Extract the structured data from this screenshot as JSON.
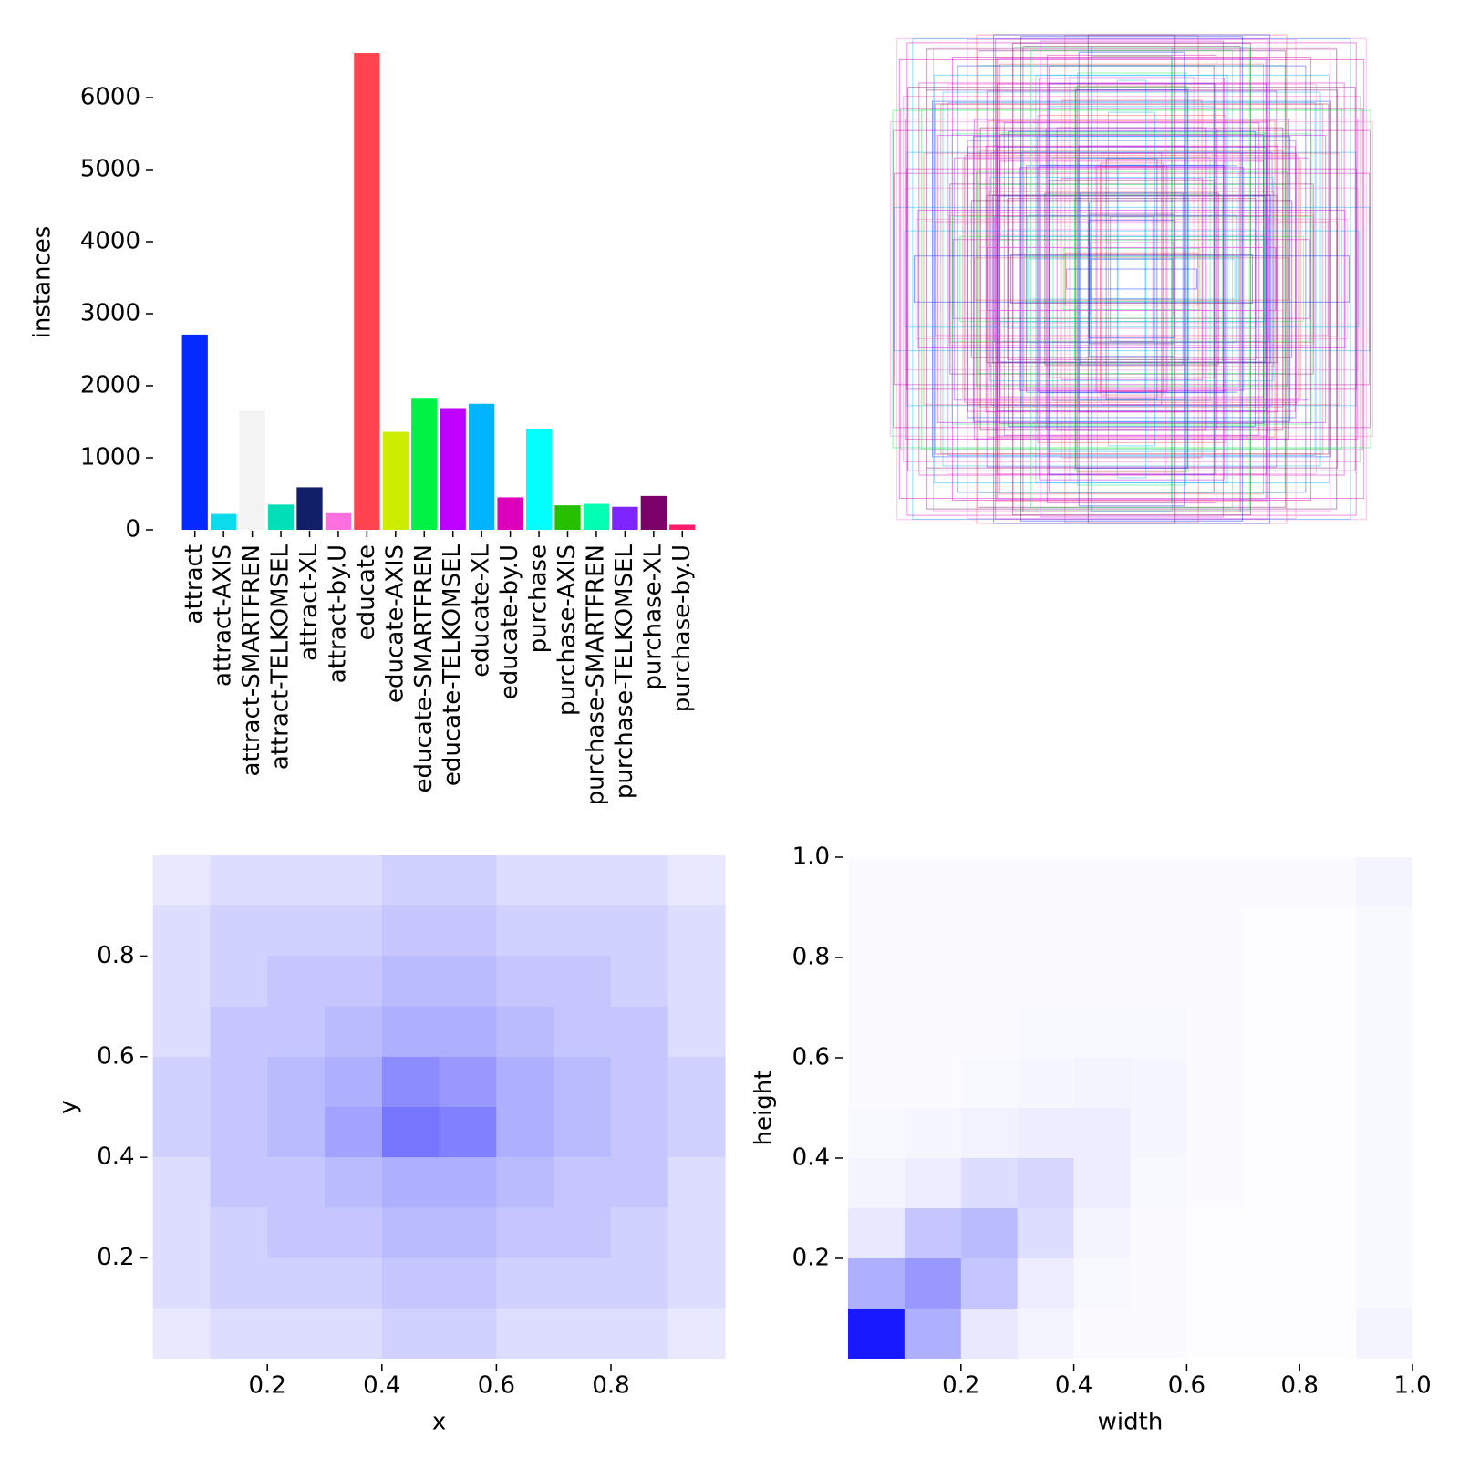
{
  "chart_data": [
    {
      "type": "bar",
      "ylabel": "instances",
      "categories": [
        "attract",
        "attract-AXIS",
        "attract-SMARTFREN",
        "attract-TELKOMSEL",
        "attract-XL",
        "attract-by.U",
        "educate",
        "educate-AXIS",
        "educate-SMARTFREN",
        "educate-TELKOMSEL",
        "educate-XL",
        "educate-by.U",
        "purchase",
        "purchase-AXIS",
        "purchase-SMARTFREN",
        "purchase-TELKOMSEL",
        "purchase-XL",
        "purchase-by.U"
      ],
      "values": [
        2710,
        220,
        1650,
        350,
        590,
        230,
        6620,
        1360,
        1820,
        1690,
        1750,
        450,
        1400,
        340,
        360,
        320,
        470,
        70
      ],
      "colors": [
        "#042AFF",
        "#0BDBEB",
        "#F3F3F3",
        "#00DFB7",
        "#111F68",
        "#FF6FDD",
        "#FF444F",
        "#CCED00",
        "#00F344",
        "#BD00FF",
        "#00B4FF",
        "#DD00BA",
        "#00FFFF",
        "#26C000",
        "#01FFB3",
        "#7D24FF",
        "#7B0068",
        "#FF1B6C"
      ],
      "ylim": [
        0,
        7000
      ],
      "yticks": [
        0,
        1000,
        2000,
        3000,
        4000,
        5000,
        6000
      ]
    },
    {
      "type": "heatmap",
      "xlabel": "x",
      "ylabel": "y",
      "color": "#0000ff",
      "xlim": [
        0,
        1
      ],
      "ylim": [
        0,
        1
      ],
      "xticks": [
        0.2,
        0.4,
        0.6,
        0.8
      ],
      "yticks": [
        0.2,
        0.4,
        0.6,
        0.8
      ],
      "xbins": [
        0,
        0.1,
        0.2,
        0.3,
        0.4,
        0.5,
        0.6,
        0.7,
        0.8,
        0.9,
        1
      ],
      "ybins": [
        0,
        0.1,
        0.2,
        0.3,
        0.4,
        0.5,
        0.6,
        0.7,
        0.8,
        0.9,
        1
      ],
      "values": [
        [
          0.1,
          0.15,
          0.15,
          0.15,
          0.2,
          0.2,
          0.15,
          0.15,
          0.15,
          0.1
        ],
        [
          0.15,
          0.2,
          0.2,
          0.2,
          0.25,
          0.25,
          0.2,
          0.2,
          0.2,
          0.15
        ],
        [
          0.15,
          0.2,
          0.25,
          0.25,
          0.3,
          0.3,
          0.25,
          0.25,
          0.2,
          0.15
        ],
        [
          0.15,
          0.25,
          0.25,
          0.3,
          0.35,
          0.35,
          0.3,
          0.25,
          0.25,
          0.15
        ],
        [
          0.2,
          0.25,
          0.3,
          0.4,
          0.6,
          0.55,
          0.35,
          0.3,
          0.25,
          0.2
        ],
        [
          0.2,
          0.25,
          0.3,
          0.35,
          0.5,
          0.45,
          0.35,
          0.3,
          0.25,
          0.2
        ],
        [
          0.15,
          0.25,
          0.25,
          0.3,
          0.35,
          0.35,
          0.3,
          0.25,
          0.25,
          0.15
        ],
        [
          0.15,
          0.2,
          0.25,
          0.25,
          0.3,
          0.3,
          0.25,
          0.25,
          0.2,
          0.15
        ],
        [
          0.15,
          0.2,
          0.2,
          0.2,
          0.25,
          0.25,
          0.2,
          0.2,
          0.2,
          0.15
        ],
        [
          0.1,
          0.15,
          0.15,
          0.15,
          0.2,
          0.2,
          0.15,
          0.15,
          0.15,
          0.1
        ]
      ]
    },
    {
      "type": "heatmap",
      "xlabel": "width",
      "ylabel": "height",
      "color": "#0000ff",
      "xlim": [
        0,
        1
      ],
      "ylim": [
        0,
        1
      ],
      "xticks": [
        0.2,
        0.4,
        0.6,
        0.8,
        {
          "value": 1,
          "label": "1.0"
        }
      ],
      "yticks": [
        0.2,
        0.4,
        0.6,
        0.8,
        {
          "value": 1,
          "label": "1.0"
        }
      ],
      "xbins": [
        0,
        0.1,
        0.2,
        0.3,
        0.4,
        0.5,
        0.6,
        0.7,
        0.8,
        0.9,
        1
      ],
      "ybins": [
        0,
        0.1,
        0.2,
        0.3,
        0.4,
        0.5,
        0.6,
        0.7,
        0.8,
        0.9,
        1
      ],
      "values": [
        [
          1,
          0.35,
          0.1,
          0.05,
          0.02,
          0.02,
          0.01,
          0.01,
          0.01,
          0.05
        ],
        [
          0.35,
          0.45,
          0.25,
          0.08,
          0.03,
          0.02,
          0.01,
          0.01,
          0.01,
          0.03
        ],
        [
          0.1,
          0.25,
          0.3,
          0.15,
          0.05,
          0.02,
          0.01,
          0.01,
          0.01,
          0.03
        ],
        [
          0.05,
          0.08,
          0.15,
          0.18,
          0.08,
          0.03,
          0.02,
          0.01,
          0.01,
          0.03
        ],
        [
          0.03,
          0.04,
          0.06,
          0.08,
          0.08,
          0.04,
          0.02,
          0.01,
          0.01,
          0.03
        ],
        [
          0.02,
          0.02,
          0.03,
          0.04,
          0.05,
          0.04,
          0.02,
          0.01,
          0.01,
          0.03
        ],
        [
          0.02,
          0.02,
          0.02,
          0.03,
          0.03,
          0.03,
          0.02,
          0.01,
          0.01,
          0.03
        ],
        [
          0.02,
          0.02,
          0.02,
          0.02,
          0.02,
          0.02,
          0.02,
          0.01,
          0.01,
          0.03
        ],
        [
          0.02,
          0.02,
          0.02,
          0.02,
          0.02,
          0.02,
          0.02,
          0.01,
          0.01,
          0.03
        ],
        [
          0.02,
          0.02,
          0.02,
          0.02,
          0.02,
          0.02,
          0.02,
          0.02,
          0.02,
          0.05
        ]
      ]
    }
  ]
}
